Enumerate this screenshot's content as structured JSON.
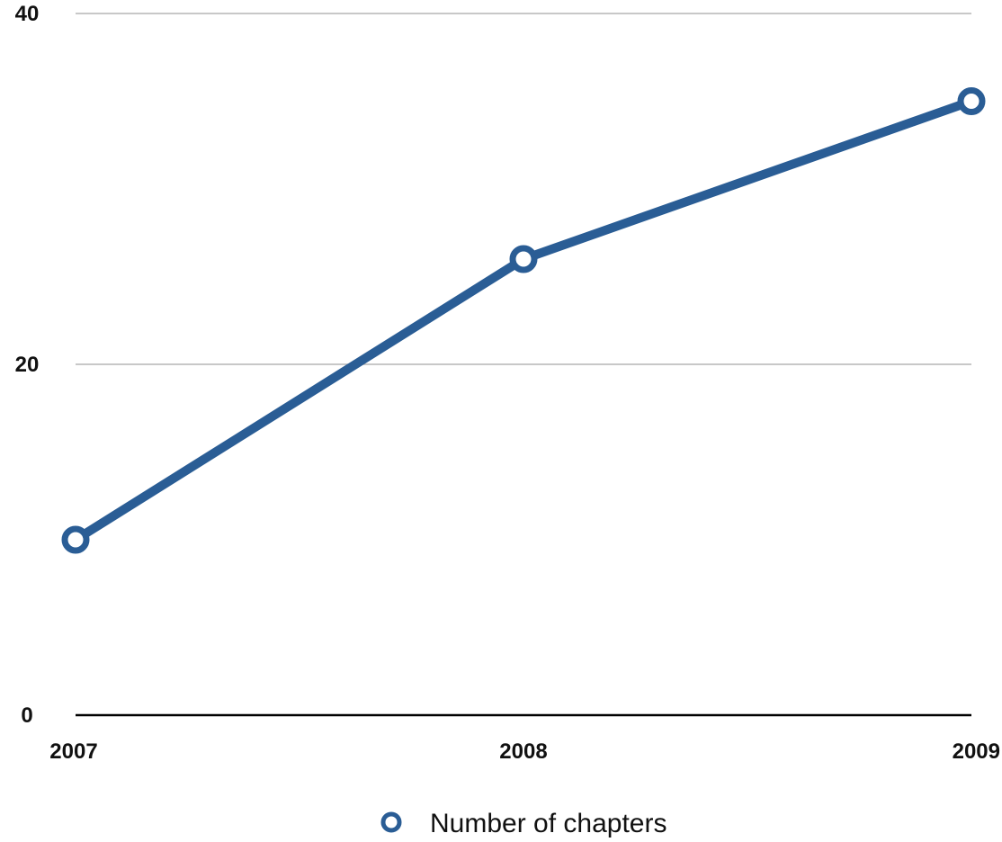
{
  "chart_data": {
    "type": "line",
    "categories": [
      "2007",
      "2008",
      "2009"
    ],
    "series": [
      {
        "name": "Number of chapters",
        "values": [
          10,
          26,
          35
        ],
        "color": "#2a5d95"
      }
    ],
    "ylim": [
      0,
      40
    ],
    "yticks": [
      "0",
      "20",
      "40"
    ],
    "grid": true,
    "legend_position": "bottom-center",
    "marker": "hollow-circle"
  }
}
